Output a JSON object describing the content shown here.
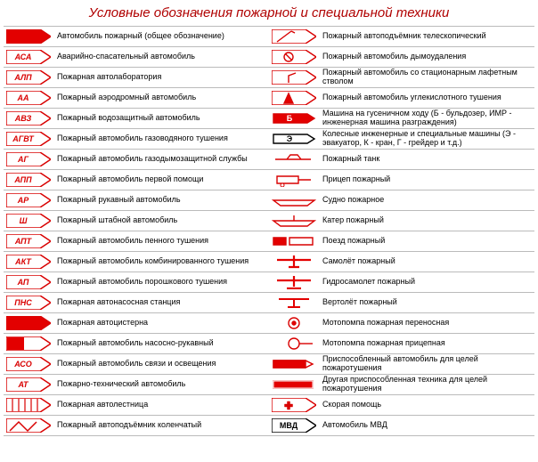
{
  "title": "Условные обозначения пожарной и специальной техники",
  "colors": {
    "red": "#d90000",
    "red_fill": "#e30000",
    "black": "#000000",
    "white": "#ffffff"
  },
  "arrow": {
    "body_w": 38,
    "tip_w": 12,
    "h": 16,
    "text_fontsize": 9,
    "text_weight": "bold"
  },
  "left": [
    {
      "code": "",
      "variant": "filled",
      "label": "Автомобиль пожарный (общее обозначение)"
    },
    {
      "code": "АСА",
      "variant": "outline",
      "label": "Аварийно-спасательный автомобиль"
    },
    {
      "code": "АЛП",
      "variant": "outline",
      "label": "Пожарная автолаборатория"
    },
    {
      "code": "АА",
      "variant": "outline",
      "label": "Пожарный аэродромный автомобиль"
    },
    {
      "code": "АВЗ",
      "variant": "outline",
      "label": "Пожарный водозащитный автомобиль"
    },
    {
      "code": "АГВТ",
      "variant": "outline",
      "label": "Пожарный автомобиль газоводяного тушения"
    },
    {
      "code": "АГ",
      "variant": "outline",
      "label": "Пожарный автомобиль газодымозащитной службы"
    },
    {
      "code": "АПП",
      "variant": "outline",
      "label": "Пожарный автомобиль первой помощи"
    },
    {
      "code": "АР",
      "variant": "outline",
      "label": "Пожарный рукавный автомобиль"
    },
    {
      "code": "Ш",
      "variant": "outline",
      "label": "Пожарный штабной автомобиль"
    },
    {
      "code": "АПТ",
      "variant": "outline",
      "label": "Пожарный автомобиль пенного тушения"
    },
    {
      "code": "АКТ",
      "variant": "outline",
      "label": "Пожарный автомобиль комбинированного тушения"
    },
    {
      "code": "АП",
      "variant": "outline",
      "label": "Пожарный автомобиль порошкового тушения"
    },
    {
      "code": "ПНС",
      "variant": "outline",
      "label": "Пожарная автонасосная станция"
    },
    {
      "code": "",
      "variant": "filled",
      "label": "Пожарная автоцистерна"
    },
    {
      "code": "",
      "variant": "split",
      "label": "Пожарный автомобиль насосно-рукавный"
    },
    {
      "code": "АСО",
      "variant": "outline",
      "label": "Пожарный автомобиль связи и освещения"
    },
    {
      "code": "АТ",
      "variant": "outline",
      "label": "Пожарно-технический автомобиль"
    },
    {
      "code": "",
      "variant": "ladder",
      "label": "Пожарная автолестница"
    },
    {
      "code": "",
      "variant": "crane",
      "label": "Пожарный автоподъёмник коленчатый"
    }
  ],
  "right": [
    {
      "icon": "telecrane",
      "label": "Пожарный автоподъёмник телескопический"
    },
    {
      "icon": "smoke",
      "label": "Пожарный автомобиль дымоудаления"
    },
    {
      "icon": "monitor",
      "label": "Пожарный автомобиль со стационарным лафетным стволом"
    },
    {
      "icon": "co2",
      "label": "Пожарный автомобиль углекислотного тушения"
    },
    {
      "icon": "tracked",
      "code": "Б",
      "label": "Машина на гусеничном ходу (Б - бульдозер, ИМР - инженерная машина разграждения)"
    },
    {
      "icon": "wheeled",
      "code": "Э",
      "label": "Колесные инженерные и специальные машины (Э - эвакуатор, К - кран, Г - грейдер и т.д.)"
    },
    {
      "icon": "tank",
      "label": "Пожарный танк"
    },
    {
      "icon": "trailer",
      "label": "Прицеп пожарный"
    },
    {
      "icon": "ship",
      "label": "Судно пожарное"
    },
    {
      "icon": "boat",
      "label": "Катер пожарный"
    },
    {
      "icon": "train",
      "label": "Поезд пожарный"
    },
    {
      "icon": "plane",
      "label": "Самолёт пожарный"
    },
    {
      "icon": "seaplane",
      "label": "Гидросамолет пожарный"
    },
    {
      "icon": "heli",
      "label": "Вертолёт пожарный"
    },
    {
      "icon": "pump1",
      "label": "Мотопомпа пожарная переносная"
    },
    {
      "icon": "pump2",
      "label": "Мотопомпа пожарная прицепная"
    },
    {
      "icon": "adapted1",
      "label": "Приспособленный автомобиль для целей пожаротушения"
    },
    {
      "icon": "adapted2",
      "label": "Другая приспособленная техника для целей пожаротушения"
    },
    {
      "icon": "ambulance",
      "label": "Скорая помощь"
    },
    {
      "icon": "mvd",
      "code": "МВД",
      "label": "Автомобиль МВД"
    }
  ]
}
